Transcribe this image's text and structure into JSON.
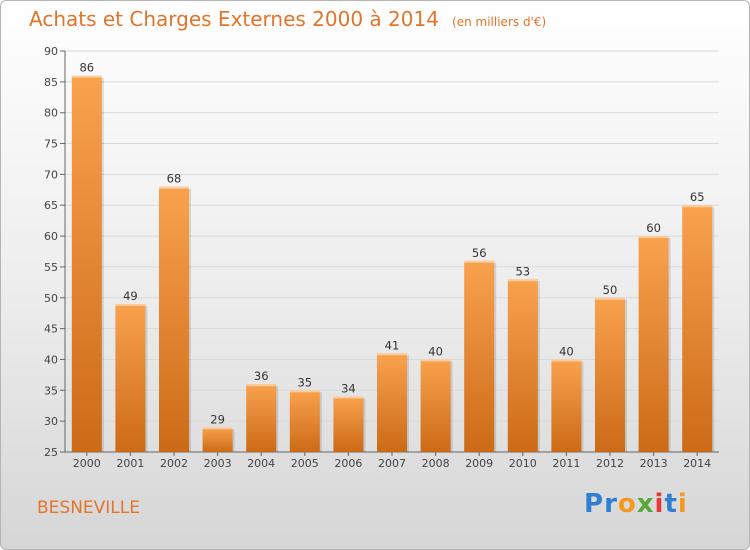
{
  "header": {
    "title": "Achats et Charges Externes 2000 à 2014",
    "unit": "(en milliers d'€)"
  },
  "footer": {
    "commune": "BESNEVILLE",
    "logo_letters": [
      {
        "ch": "P",
        "color": "#2e7fd1"
      },
      {
        "ch": "r",
        "color": "#2e7fd1"
      },
      {
        "ch": "o",
        "color": "#f29a1d"
      },
      {
        "ch": "x",
        "color": "#5aa83a"
      },
      {
        "ch": "i",
        "color": "#e53935"
      },
      {
        "ch": "t",
        "color": "#2e7fd1"
      },
      {
        "ch": "i",
        "color": "#f29a1d"
      }
    ]
  },
  "colors": {
    "title": "#e3742a",
    "bar_light": "#f9a24e",
    "bar_dark": "#cc6a17",
    "grid": "#d9d9d9"
  },
  "chart_data": {
    "type": "bar",
    "title": "Achats et Charges Externes 2000 à 2014",
    "subtitle": "(en milliers d'€)",
    "categories": [
      "2000",
      "2001",
      "2002",
      "2003",
      "2004",
      "2005",
      "2006",
      "2007",
      "2008",
      "2009",
      "2010",
      "2011",
      "2012",
      "2013",
      "2014"
    ],
    "values": [
      86,
      49,
      68,
      29,
      36,
      35,
      34,
      41,
      40,
      56,
      53,
      40,
      50,
      60,
      65
    ],
    "ylim": [
      25,
      90
    ],
    "yticks": [
      25,
      30,
      35,
      40,
      45,
      50,
      55,
      60,
      65,
      70,
      75,
      80,
      85,
      90
    ],
    "grid": true,
    "data_labels": true,
    "xlabel": "",
    "ylabel": ""
  }
}
